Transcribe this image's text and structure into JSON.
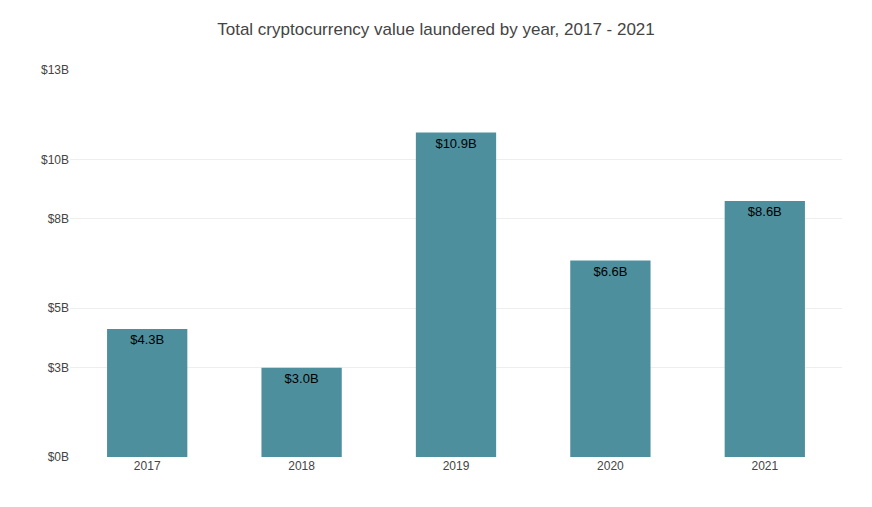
{
  "chart_data": {
    "type": "bar",
    "title": "Total cryptocurrency value laundered by year, 2017 - 2021",
    "categories": [
      "2017",
      "2018",
      "2019",
      "2020",
      "2021"
    ],
    "values": [
      4.3,
      3.0,
      10.9,
      6.6,
      8.6
    ],
    "value_labels": [
      "$4.3B",
      "$3.0B",
      "$10.9B",
      "$6.6B",
      "$8.6B"
    ],
    "data_labels": true,
    "color": "#4d8f9c",
    "ylim": [
      0,
      13
    ],
    "yticks": [
      {
        "value": 0,
        "label": "$0B"
      },
      {
        "value": 3,
        "label": "$3B"
      },
      {
        "value": 5,
        "label": "$5B"
      },
      {
        "value": 8,
        "label": "$8B"
      },
      {
        "value": 10,
        "label": "$10B"
      },
      {
        "value": 13,
        "label": "$13B"
      }
    ],
    "grid": true
  }
}
